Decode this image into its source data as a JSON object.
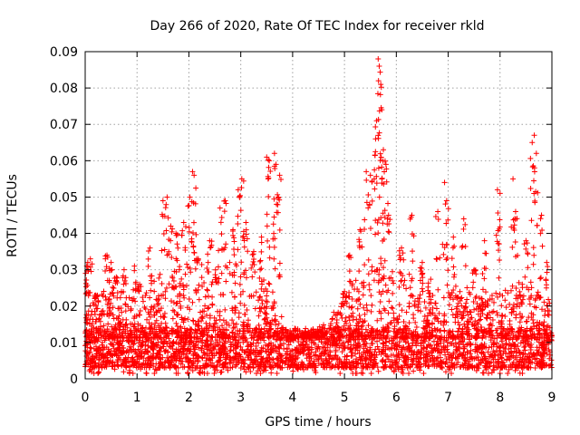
{
  "chart_data": {
    "type": "scatter",
    "title": "Day 266 of 2020, Rate Of TEC Index for receiver rkld",
    "xlabel": "GPS time / hours",
    "ylabel": "ROTI / TECUs",
    "xlim": [
      0,
      9
    ],
    "ylim": [
      0,
      0.09
    ],
    "xticks": [
      0,
      1,
      2,
      3,
      4,
      5,
      6,
      7,
      8,
      9
    ],
    "yticks": [
      0,
      0.01,
      0.02,
      0.03,
      0.04,
      0.05,
      0.06,
      0.07,
      0.08,
      0.09
    ],
    "xtick_labels": [
      "0",
      "1",
      "2",
      "3",
      "4",
      "5",
      "6",
      "7",
      "8",
      "9"
    ],
    "ytick_labels": [
      "0",
      "0.01",
      "0.02",
      "0.03",
      "0.04",
      "0.05",
      "0.06",
      "0.07",
      "0.08",
      "0.09"
    ],
    "grid": true,
    "marker": "+",
    "color": "#ff0000",
    "series": [
      {
        "name": "ROTI",
        "baseline": {
          "from_x": 0,
          "to_x": 9,
          "typical_range": [
            0.003,
            0.014
          ]
        },
        "bursts": [
          {
            "x": 0.03,
            "y": 0.031
          },
          {
            "x": 0.05,
            "y": 0.032
          },
          {
            "x": 0.1,
            "y": 0.033
          },
          {
            "x": 0.2,
            "y": 0.023
          },
          {
            "x": 0.42,
            "y": 0.034
          },
          {
            "x": 0.5,
            "y": 0.032
          },
          {
            "x": 0.6,
            "y": 0.028
          },
          {
            "x": 0.75,
            "y": 0.03
          },
          {
            "x": 0.95,
            "y": 0.031
          },
          {
            "x": 1.05,
            "y": 0.026
          },
          {
            "x": 1.25,
            "y": 0.036
          },
          {
            "x": 1.5,
            "y": 0.049
          },
          {
            "x": 1.58,
            "y": 0.05
          },
          {
            "x": 1.65,
            "y": 0.042
          },
          {
            "x": 1.75,
            "y": 0.04
          },
          {
            "x": 1.9,
            "y": 0.043
          },
          {
            "x": 2.02,
            "y": 0.05
          },
          {
            "x": 2.07,
            "y": 0.057
          },
          {
            "x": 2.1,
            "y": 0.056
          },
          {
            "x": 2.15,
            "y": 0.033
          },
          {
            "x": 2.4,
            "y": 0.038
          },
          {
            "x": 2.6,
            "y": 0.047
          },
          {
            "x": 2.7,
            "y": 0.049
          },
          {
            "x": 2.85,
            "y": 0.041
          },
          {
            "x": 2.95,
            "y": 0.052
          },
          {
            "x": 3.02,
            "y": 0.055
          },
          {
            "x": 3.1,
            "y": 0.043
          },
          {
            "x": 3.25,
            "y": 0.035
          },
          {
            "x": 3.4,
            "y": 0.039
          },
          {
            "x": 3.5,
            "y": 0.061
          },
          {
            "x": 3.55,
            "y": 0.06
          },
          {
            "x": 3.65,
            "y": 0.062
          },
          {
            "x": 3.68,
            "y": 0.059
          },
          {
            "x": 3.72,
            "y": 0.05
          },
          {
            "x": 3.75,
            "y": 0.056
          },
          {
            "x": 5.0,
            "y": 0.024
          },
          {
            "x": 5.1,
            "y": 0.034
          },
          {
            "x": 5.3,
            "y": 0.041
          },
          {
            "x": 5.42,
            "y": 0.057
          },
          {
            "x": 5.5,
            "y": 0.056
          },
          {
            "x": 5.6,
            "y": 0.066
          },
          {
            "x": 5.62,
            "y": 0.071
          },
          {
            "x": 5.65,
            "y": 0.088
          },
          {
            "x": 5.67,
            "y": 0.086
          },
          {
            "x": 5.7,
            "y": 0.081
          },
          {
            "x": 5.72,
            "y": 0.074
          },
          {
            "x": 5.75,
            "y": 0.063
          },
          {
            "x": 5.8,
            "y": 0.059
          },
          {
            "x": 5.85,
            "y": 0.045
          },
          {
            "x": 6.1,
            "y": 0.036
          },
          {
            "x": 6.3,
            "y": 0.045
          },
          {
            "x": 6.5,
            "y": 0.032
          },
          {
            "x": 6.8,
            "y": 0.046
          },
          {
            "x": 6.93,
            "y": 0.054
          },
          {
            "x": 6.97,
            "y": 0.049
          },
          {
            "x": 7.1,
            "y": 0.039
          },
          {
            "x": 7.3,
            "y": 0.044
          },
          {
            "x": 7.5,
            "y": 0.03
          },
          {
            "x": 7.7,
            "y": 0.038
          },
          {
            "x": 7.95,
            "y": 0.052
          },
          {
            "x": 8.0,
            "y": 0.051
          },
          {
            "x": 8.25,
            "y": 0.055
          },
          {
            "x": 8.3,
            "y": 0.046
          },
          {
            "x": 8.5,
            "y": 0.038
          },
          {
            "x": 8.62,
            "y": 0.065
          },
          {
            "x": 8.66,
            "y": 0.067
          },
          {
            "x": 8.7,
            "y": 0.062
          },
          {
            "x": 8.8,
            "y": 0.045
          },
          {
            "x": 8.9,
            "y": 0.032
          }
        ],
        "envelope": [
          {
            "x": 0.0,
            "y": 0.02
          },
          {
            "x": 0.5,
            "y": 0.026
          },
          {
            "x": 1.0,
            "y": 0.022
          },
          {
            "x": 1.5,
            "y": 0.03
          },
          {
            "x": 2.0,
            "y": 0.032
          },
          {
            "x": 2.5,
            "y": 0.031
          },
          {
            "x": 3.0,
            "y": 0.033
          },
          {
            "x": 3.5,
            "y": 0.028
          },
          {
            "x": 4.0,
            "y": 0.012
          },
          {
            "x": 4.5,
            "y": 0.014
          },
          {
            "x": 5.0,
            "y": 0.022
          },
          {
            "x": 5.5,
            "y": 0.036
          },
          {
            "x": 6.0,
            "y": 0.03
          },
          {
            "x": 6.5,
            "y": 0.028
          },
          {
            "x": 7.0,
            "y": 0.027
          },
          {
            "x": 7.5,
            "y": 0.025
          },
          {
            "x": 8.0,
            "y": 0.024
          },
          {
            "x": 8.5,
            "y": 0.029
          },
          {
            "x": 9.0,
            "y": 0.022
          }
        ]
      }
    ]
  }
}
